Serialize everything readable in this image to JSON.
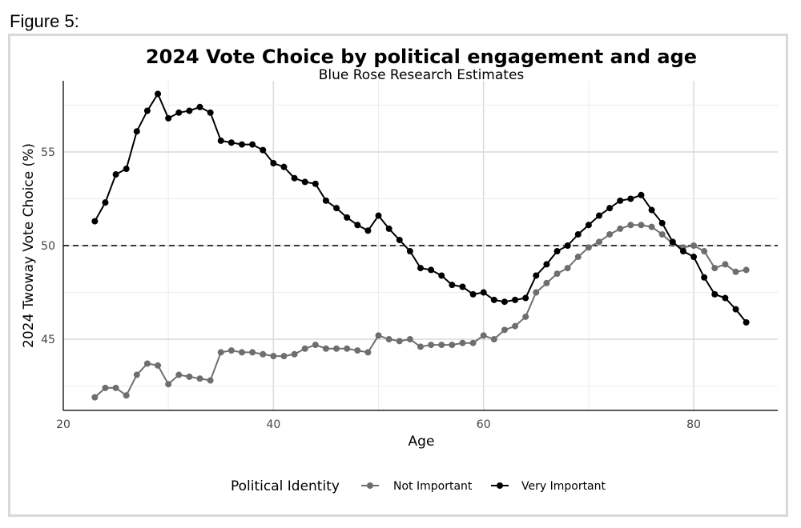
{
  "figure_label": "Figure 5:",
  "chart_data": {
    "type": "line",
    "title": "2024 Vote Choice by political engagement and age",
    "subtitle": "Blue Rose Research Estimates",
    "xlabel": "Age",
    "ylabel": "2024 Twoway Vote Choice (%)",
    "xlim": [
      20,
      88
    ],
    "ylim": [
      41.2,
      58.8
    ],
    "xticks": [
      20,
      40,
      60,
      80
    ],
    "xtick_labels": [
      "20",
      "40",
      "60",
      "80"
    ],
    "yticks": [
      45,
      50,
      55
    ],
    "ytick_labels": [
      "45",
      "50",
      "55"
    ],
    "reference_line": 50,
    "grid": true,
    "legend": {
      "title": "Political Identity",
      "position": "bottom"
    },
    "series": [
      {
        "name": "Not Important",
        "color": "#6e6e6e",
        "x": [
          23,
          24,
          25,
          26,
          27,
          28,
          29,
          30,
          31,
          32,
          33,
          34,
          35,
          36,
          37,
          38,
          39,
          40,
          41,
          42,
          43,
          44,
          45,
          46,
          47,
          48,
          49,
          50,
          51,
          52,
          53,
          54,
          55,
          56,
          57,
          58,
          59,
          60,
          61,
          62,
          63,
          64,
          65,
          66,
          67,
          68,
          69,
          70,
          71,
          72,
          73,
          74,
          75,
          76,
          77,
          78,
          79,
          80,
          81,
          82,
          83,
          84,
          85
        ],
        "y": [
          41.9,
          42.4,
          42.4,
          42.0,
          43.1,
          43.7,
          43.6,
          42.6,
          43.1,
          43.0,
          42.9,
          42.8,
          44.3,
          44.4,
          44.3,
          44.3,
          44.2,
          44.1,
          44.1,
          44.2,
          44.5,
          44.7,
          44.5,
          44.5,
          44.5,
          44.4,
          44.3,
          45.2,
          45.0,
          44.9,
          45.0,
          44.6,
          44.7,
          44.7,
          44.7,
          44.8,
          44.8,
          45.2,
          45.0,
          45.5,
          45.7,
          46.2,
          47.5,
          48.0,
          48.5,
          48.8,
          49.4,
          49.9,
          50.2,
          50.6,
          50.9,
          51.1,
          51.1,
          51.0,
          50.6,
          50.1,
          49.9,
          50.0,
          49.7,
          48.8,
          49.0,
          48.6,
          48.7
        ]
      },
      {
        "name": "Very Important",
        "color": "#000000",
        "x": [
          23,
          24,
          25,
          26,
          27,
          28,
          29,
          30,
          31,
          32,
          33,
          34,
          35,
          36,
          37,
          38,
          39,
          40,
          41,
          42,
          43,
          44,
          45,
          46,
          47,
          48,
          49,
          50,
          51,
          52,
          53,
          54,
          55,
          56,
          57,
          58,
          59,
          60,
          61,
          62,
          63,
          64,
          65,
          66,
          67,
          68,
          69,
          70,
          71,
          72,
          73,
          74,
          75,
          76,
          77,
          78,
          79,
          80,
          81,
          82,
          83,
          84,
          85
        ],
        "y": [
          51.3,
          52.3,
          53.8,
          54.1,
          56.1,
          57.2,
          58.1,
          56.8,
          57.1,
          57.2,
          57.4,
          57.1,
          55.6,
          55.5,
          55.4,
          55.4,
          55.1,
          54.4,
          54.2,
          53.6,
          53.4,
          53.3,
          52.4,
          52.0,
          51.5,
          51.1,
          50.8,
          51.6,
          50.9,
          50.3,
          49.7,
          48.8,
          48.7,
          48.4,
          47.9,
          47.8,
          47.4,
          47.5,
          47.1,
          47.0,
          47.1,
          47.2,
          48.4,
          49.0,
          49.7,
          50.0,
          50.6,
          51.1,
          51.6,
          52.0,
          52.4,
          52.5,
          52.7,
          51.9,
          51.2,
          50.2,
          49.7,
          49.4,
          48.3,
          47.4,
          47.2,
          46.6,
          45.9
        ]
      }
    ]
  }
}
